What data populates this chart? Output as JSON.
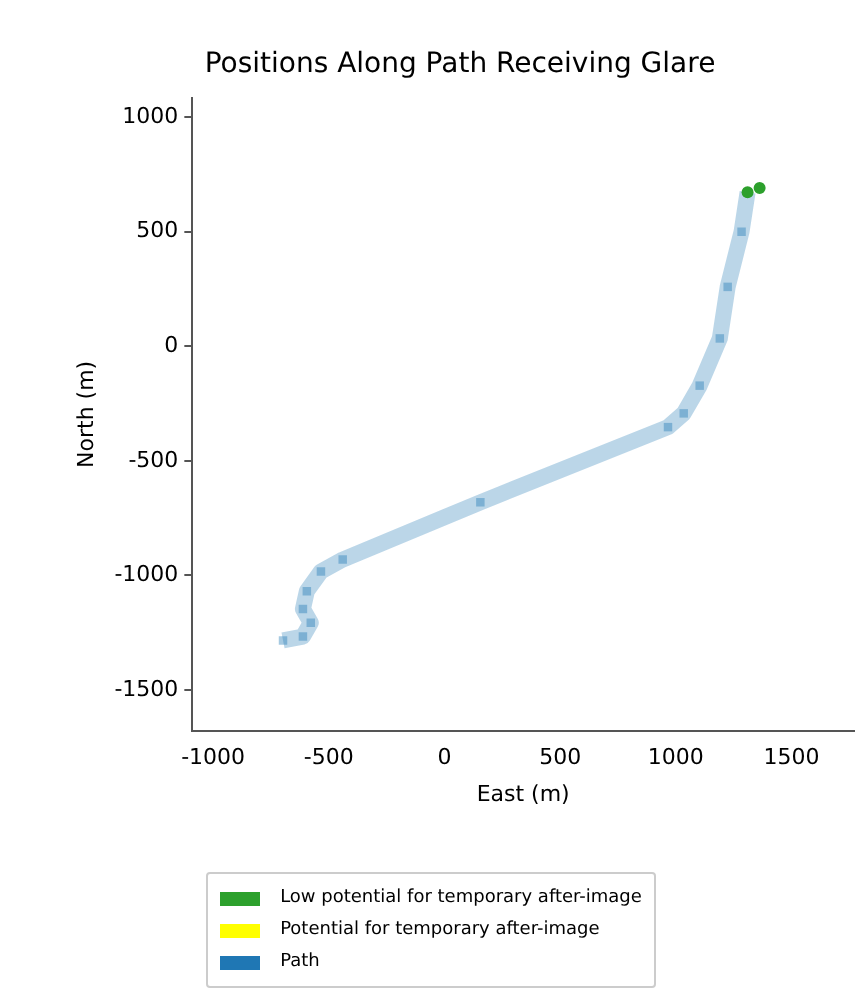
{
  "chart_data": {
    "type": "line",
    "title": "Positions Along Path Receiving Glare",
    "xlabel": "East (m)",
    "ylabel": "North (m)",
    "xlim": [
      -1090,
      1770
    ],
    "ylim": [
      -1680,
      1085
    ],
    "xticks": [
      -1000,
      -500,
      0,
      500,
      1000,
      1500
    ],
    "yticks": [
      -1500,
      -1000,
      -500,
      0,
      500,
      1000
    ],
    "grid": false,
    "legend": "bottom",
    "series": [
      {
        "name": "Low potential for temporary after-image",
        "type": "scatter",
        "color": "#2ca02c",
        "marker": "circle",
        "x": [
          1310,
          1362
        ],
        "values": [
          672,
          690
        ]
      },
      {
        "name": "Potential for temporary after-image",
        "type": "scatter",
        "color": "#ffff00",
        "marker": "circle"
      },
      {
        "name": "Path",
        "type": "line",
        "color": "#1f77b4",
        "marker": "square",
        "x": [
          -698,
          -612,
          -578,
          -612,
          -595,
          -534,
          -440,
          155,
          966,
          1034,
          1103,
          1190,
          1224,
          1284,
          1310
        ],
        "values": [
          -1284,
          -1267,
          -1207,
          -1147,
          -1069,
          -983,
          -931,
          -681,
          -353,
          -293,
          -172,
          34,
          259,
          500,
          672
        ]
      }
    ]
  }
}
